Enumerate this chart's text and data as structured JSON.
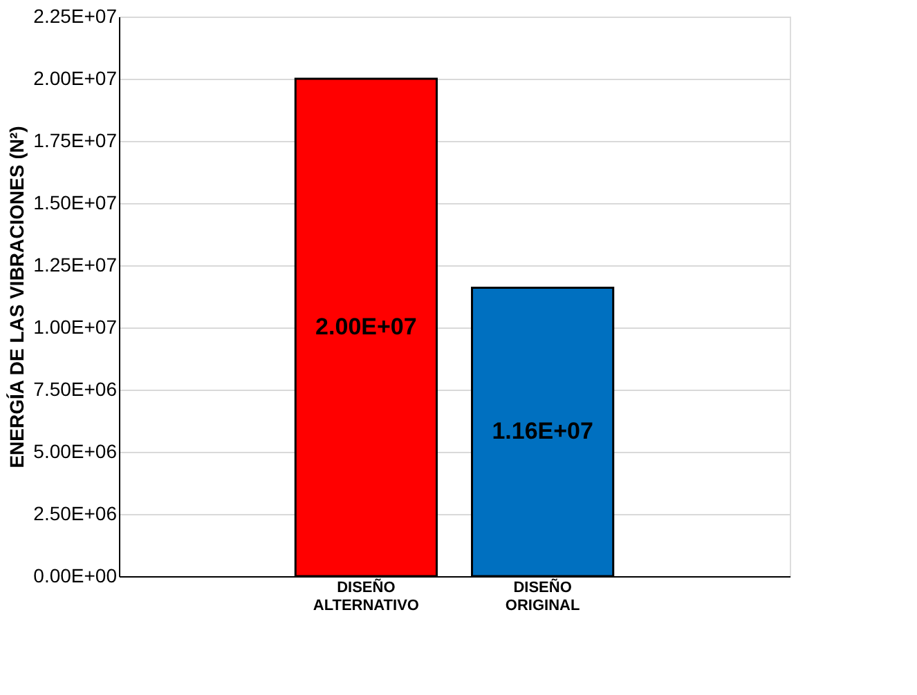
{
  "chart_data": {
    "type": "bar",
    "ylabel": "ENERGÍA DE LAS VIBRACIONES (N²)",
    "categories": [
      "DISEÑO ALTERNATIVO",
      "DISEÑO ORIGINAL"
    ],
    "values": [
      20000000,
      11600000
    ],
    "colors": [
      "#ff0000",
      "#0070c0"
    ],
    "value_labels": [
      "2.00E+07",
      "1.16E+07"
    ],
    "ylim": [
      0,
      22500000
    ],
    "yticks": [
      {
        "value": 0,
        "label": "0.00E+00"
      },
      {
        "value": 2500000,
        "label": "2.50E+06"
      },
      {
        "value": 5000000,
        "label": "5.00E+06"
      },
      {
        "value": 7500000,
        "label": "7.50E+06"
      },
      {
        "value": 10000000,
        "label": "1.00E+07"
      },
      {
        "value": 12500000,
        "label": "1.25E+07"
      },
      {
        "value": 15000000,
        "label": "1.50E+07"
      },
      {
        "value": 17500000,
        "label": "1.75E+07"
      },
      {
        "value": 20000000,
        "label": "2.00E+07"
      },
      {
        "value": 22500000,
        "label": "2.25E+07"
      }
    ],
    "grid": "y"
  }
}
